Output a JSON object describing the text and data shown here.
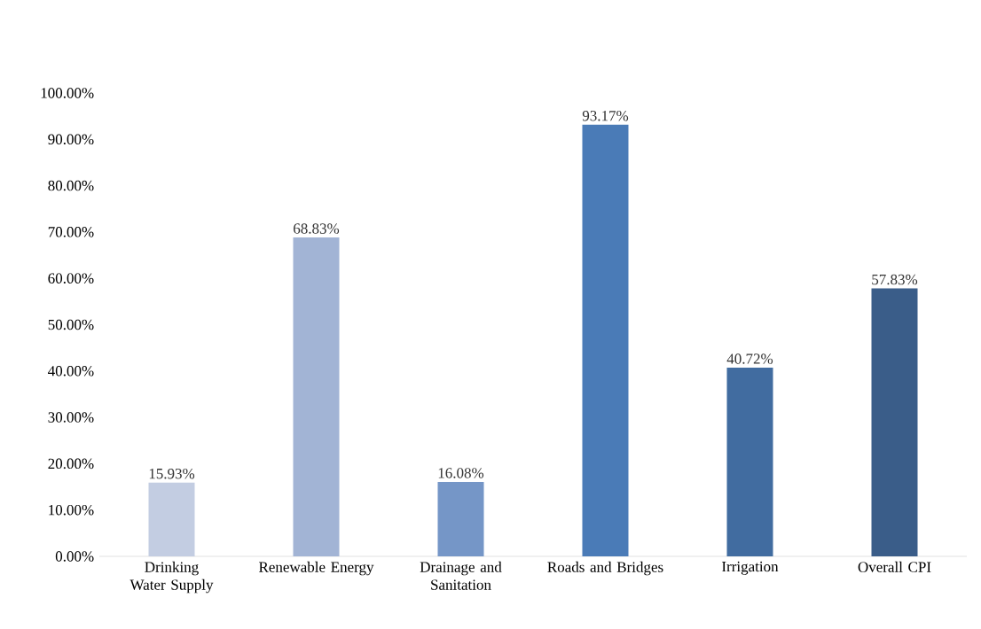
{
  "chart_data": {
    "type": "bar",
    "categories": [
      "Drinking Water Supply",
      "Renewable Energy",
      "Drainage and Sanitation",
      "Roads and Bridges",
      "Irrigation",
      "Overall CPI"
    ],
    "values": [
      15.93,
      68.83,
      16.08,
      93.17,
      40.72,
      57.83
    ],
    "colors": [
      "#c3cde2",
      "#a2b4d5",
      "#7596c7",
      "#4a7bb7",
      "#416ca0",
      "#3a5d89"
    ],
    "value_labels": [
      "15.93%",
      "68.83%",
      "16.08%",
      "93.17%",
      "40.72%",
      "57.83%"
    ],
    "ylim": [
      0,
      100
    ],
    "yticks": [
      {
        "value": 0,
        "label": "0.00%"
      },
      {
        "value": 10,
        "label": "10.00%"
      },
      {
        "value": 20,
        "label": "20.00%"
      },
      {
        "value": 30,
        "label": "30.00%"
      },
      {
        "value": 40,
        "label": "40.00%"
      },
      {
        "value": 50,
        "label": "50.00%"
      },
      {
        "value": 60,
        "label": "60.00%"
      },
      {
        "value": 70,
        "label": "70.00%"
      },
      {
        "value": 80,
        "label": "80.00%"
      },
      {
        "value": 90,
        "label": "90.00%"
      },
      {
        "value": 100,
        "label": "100.00%"
      }
    ]
  }
}
